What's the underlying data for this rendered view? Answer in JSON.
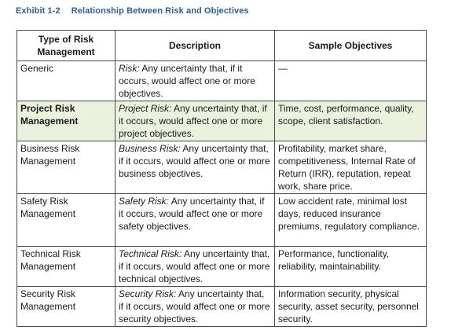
{
  "exhibit": {
    "label": "Exhibit 1-2",
    "title": "Relationship Between Risk and Objectives"
  },
  "table": {
    "headers": {
      "type": "Type of Risk Management",
      "description": "Description",
      "objectives": "Sample Objectives"
    },
    "rows": [
      {
        "type": "Generic",
        "term": "Risk:",
        "description": " Any uncertainty that, if it occurs, would affect one or more objectives.",
        "objectives": "—"
      },
      {
        "type": "Project Risk Management",
        "term": "Project Risk:",
        "description": " Any uncertainty that, if it occurs, would affect one or more project objectives.",
        "objectives": "Time, cost, performance, quality, scope, client satisfaction."
      },
      {
        "type": "Business Risk Management",
        "term": "Business Risk:",
        "description": " Any uncertainty that, if it occurs, would affect one or more business objectives.",
        "objectives": "Profitability, market share, competitiveness, Internal Rate of Return (IRR), reputation, repeat work, share price."
      },
      {
        "type": "Safety Risk Management",
        "term": "Safety Risk:",
        "description": " Any uncertainty that, if it occurs, would affect one or more safety objectives.",
        "objectives": "Low accident rate, minimal lost days, reduced insurance premiums, regulatory compliance."
      },
      {
        "type": "Technical Risk Management",
        "term": "Technical Risk:",
        "description": " Any uncertainty that, if it occurs, would affect one or more technical objectives.",
        "objectives": "Performance, functionality, reliability, maintainability."
      },
      {
        "type": "Security Risk Management",
        "term": "Security Risk:",
        "description": " Any uncertainty that, if it occurs, would affect one or more security objectives.",
        "objectives": "Information security, physical security, asset security, personnel security."
      }
    ]
  },
  "colors": {
    "title": "#2f5f8f",
    "highlight_row": "#eaf1dd",
    "border": "#4a4a4a"
  }
}
